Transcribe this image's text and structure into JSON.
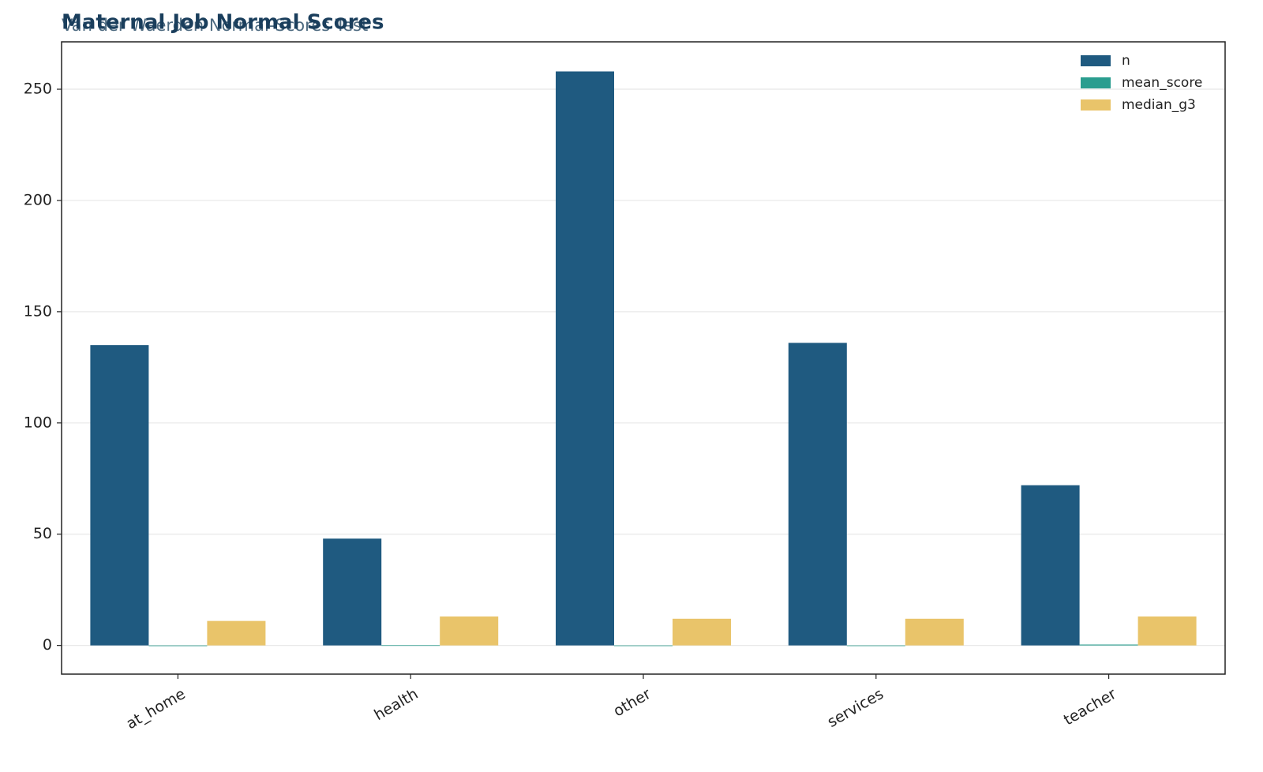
{
  "chart_data": {
    "type": "bar",
    "title": "Maternal Job Normal Scores",
    "subtitle": "Van der Waerden Normal-Scores Test",
    "categories": [
      "at_home",
      "health",
      "other",
      "services",
      "teacher"
    ],
    "series": [
      {
        "name": "n",
        "color": "#1f5a80",
        "values": [
          135,
          48,
          258,
          136,
          72
        ]
      },
      {
        "name": "mean_score",
        "color": "#2a9d8f",
        "values": [
          -0.3,
          0.1,
          0.0,
          0.0,
          0.4
        ]
      },
      {
        "name": "median_g3",
        "color": "#e9c46a",
        "values": [
          11,
          13,
          12,
          12,
          13
        ]
      }
    ],
    "ylim": [
      -12.9,
      271.3
    ],
    "yticks": [
      0,
      50,
      100,
      150,
      200,
      250
    ],
    "grid": true,
    "legend": "upper-right"
  }
}
